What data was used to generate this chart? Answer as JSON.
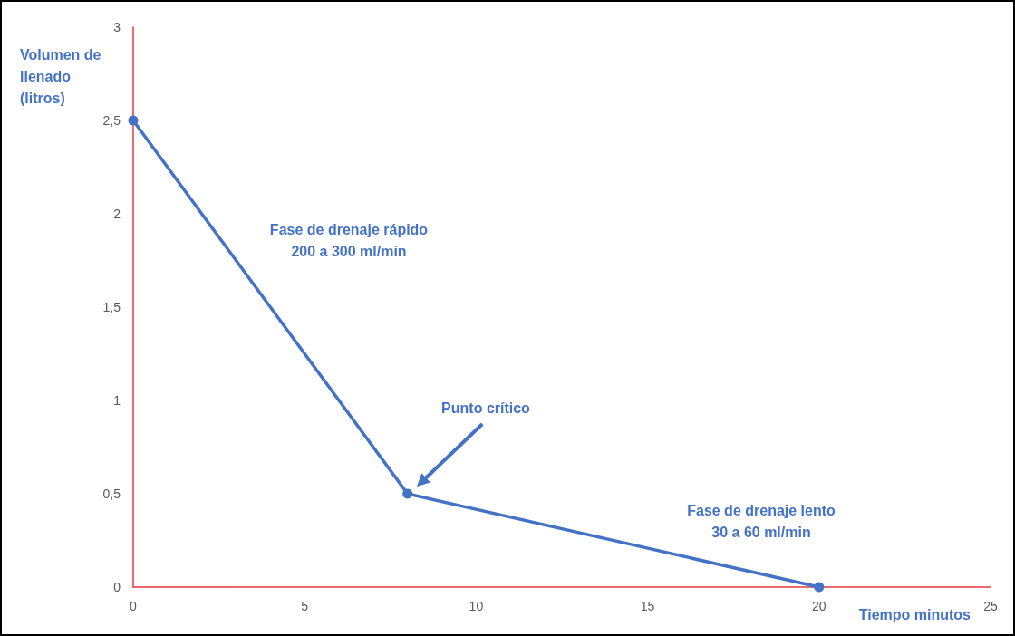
{
  "chart_data": {
    "type": "line",
    "xlabel": "Tiempo minutos",
    "ylabel": "Volumen de llenado (litros)",
    "x": [
      0,
      8,
      20
    ],
    "series": [
      {
        "color": "#4472c4",
        "values": [
          2.5,
          0.5,
          0
        ]
      }
    ],
    "xlim": [
      0,
      25
    ],
    "xticks": [
      0,
      5,
      10,
      15,
      20,
      25
    ],
    "ylim": [
      0,
      3
    ],
    "yticks": [
      0,
      {
        "value": 0.5,
        "label": "0,5"
      },
      1,
      {
        "value": 1.5,
        "label": "1,5"
      },
      2,
      {
        "value": 2.5,
        "label": "2,5"
      },
      3
    ],
    "annotations": [
      "Fase de drenaje rápido\n200 a 300 ml/min",
      "Punto crítico",
      "Fase de drenaje lento\n30 a 60 ml/min"
    ],
    "marker": "circle",
    "line_style": "solid",
    "grid": false
  }
}
